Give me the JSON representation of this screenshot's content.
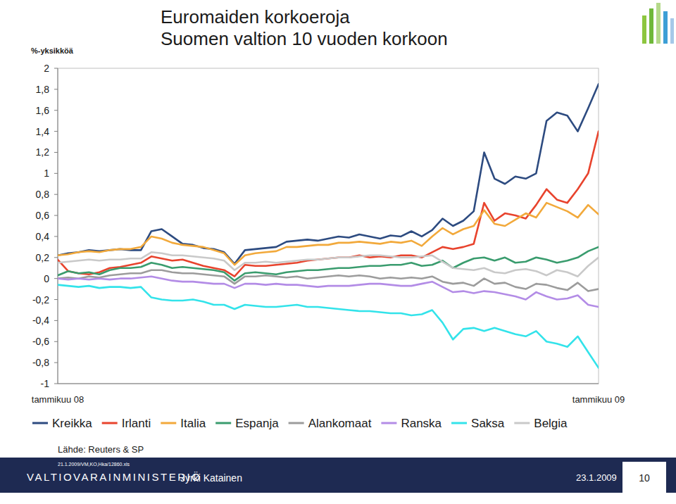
{
  "chart_data": {
    "type": "line",
    "title": "Euromaiden korkoeroja",
    "subtitle": "Suomen valtion 10 vuoden korkoon",
    "ylabel": "%-yksikköä",
    "categories": [
      "tammikuu 08",
      null,
      null,
      null,
      null,
      null,
      null,
      null,
      null,
      null,
      null,
      null,
      null,
      null,
      null,
      null,
      null,
      null,
      null,
      null,
      null,
      null,
      null,
      null,
      null,
      null,
      null,
      null,
      null,
      null,
      null,
      null,
      null,
      null,
      null,
      null,
      null,
      null,
      null,
      null,
      null,
      null,
      null,
      null,
      null,
      null,
      null,
      null,
      null,
      null,
      null,
      null,
      "tammikuu 09"
    ],
    "series": [
      {
        "name": "Kreikka",
        "color": "#2d4b80",
        "values": [
          0.22,
          0.24,
          0.25,
          0.27,
          0.26,
          0.27,
          0.28,
          0.27,
          0.27,
          0.45,
          0.47,
          0.4,
          0.33,
          0.32,
          0.29,
          0.28,
          0.25,
          0.14,
          0.27,
          0.28,
          0.29,
          0.3,
          0.35,
          0.36,
          0.37,
          0.36,
          0.38,
          0.4,
          0.39,
          0.42,
          0.4,
          0.38,
          0.41,
          0.4,
          0.45,
          0.4,
          0.46,
          0.57,
          0.5,
          0.55,
          0.64,
          1.2,
          0.95,
          0.9,
          0.97,
          0.95,
          1.0,
          1.5,
          1.58,
          1.55,
          1.4,
          1.62,
          1.85
        ]
      },
      {
        "name": "Irlanti",
        "color": "#e8432d",
        "values": [
          0.18,
          0.07,
          0.05,
          0.04,
          0.06,
          0.1,
          0.11,
          0.13,
          0.15,
          0.21,
          0.19,
          0.17,
          0.18,
          0.15,
          0.12,
          0.1,
          0.08,
          0.02,
          0.13,
          0.12,
          0.12,
          0.13,
          0.14,
          0.15,
          0.17,
          0.18,
          0.19,
          0.2,
          0.2,
          0.22,
          0.2,
          0.21,
          0.2,
          0.22,
          0.22,
          0.2,
          0.25,
          0.3,
          0.28,
          0.3,
          0.33,
          0.72,
          0.55,
          0.62,
          0.6,
          0.57,
          0.7,
          0.85,
          0.75,
          0.72,
          0.85,
          1.0,
          1.4
        ]
      },
      {
        "name": "Italia",
        "color": "#f2a93b",
        "values": [
          0.22,
          0.23,
          0.25,
          0.26,
          0.25,
          0.27,
          0.28,
          0.28,
          0.3,
          0.4,
          0.38,
          0.34,
          0.32,
          0.31,
          0.3,
          0.27,
          0.24,
          0.13,
          0.22,
          0.24,
          0.25,
          0.26,
          0.3,
          0.3,
          0.31,
          0.32,
          0.32,
          0.34,
          0.34,
          0.35,
          0.34,
          0.33,
          0.35,
          0.34,
          0.36,
          0.31,
          0.4,
          0.48,
          0.42,
          0.47,
          0.5,
          0.65,
          0.52,
          0.5,
          0.56,
          0.62,
          0.58,
          0.72,
          0.68,
          0.64,
          0.58,
          0.7,
          0.61
        ]
      },
      {
        "name": "Espanja",
        "color": "#3a9c6e",
        "values": [
          0.03,
          0.07,
          0.05,
          0.06,
          0.04,
          0.08,
          0.1,
          0.1,
          0.11,
          0.15,
          0.13,
          0.1,
          0.11,
          0.1,
          0.09,
          0.08,
          0.06,
          -0.02,
          0.05,
          0.06,
          0.05,
          0.04,
          0.06,
          0.07,
          0.08,
          0.08,
          0.09,
          0.1,
          0.1,
          0.11,
          0.12,
          0.12,
          0.13,
          0.13,
          0.15,
          0.12,
          0.13,
          0.17,
          0.1,
          0.15,
          0.19,
          0.2,
          0.17,
          0.2,
          0.15,
          0.16,
          0.2,
          0.18,
          0.15,
          0.17,
          0.2,
          0.26,
          0.3
        ]
      },
      {
        "name": "Alankomaat",
        "color": "#9c9c9c",
        "values": [
          0.0,
          0.01,
          0.0,
          0.02,
          0.01,
          0.03,
          0.04,
          0.05,
          0.05,
          0.08,
          0.08,
          0.06,
          0.05,
          0.05,
          0.04,
          0.03,
          0.02,
          -0.05,
          0.02,
          0.02,
          0.03,
          0.02,
          0.01,
          0.02,
          0.0,
          0.01,
          0.02,
          0.03,
          0.02,
          0.03,
          0.02,
          0.0,
          0.01,
          0.0,
          0.01,
          0.0,
          0.02,
          -0.03,
          -0.05,
          -0.04,
          -0.07,
          0.0,
          -0.05,
          -0.04,
          -0.08,
          -0.1,
          -0.05,
          -0.06,
          -0.09,
          -0.11,
          -0.04,
          -0.12,
          -0.1
        ]
      },
      {
        "name": "Ranska",
        "color": "#b38ce6",
        "values": [
          0.0,
          -0.01,
          0.0,
          -0.01,
          0.0,
          -0.01,
          0.0,
          0.0,
          0.01,
          0.02,
          0.0,
          -0.02,
          -0.03,
          -0.03,
          -0.04,
          -0.05,
          -0.05,
          -0.09,
          -0.05,
          -0.05,
          -0.06,
          -0.05,
          -0.06,
          -0.06,
          -0.07,
          -0.08,
          -0.07,
          -0.07,
          -0.07,
          -0.06,
          -0.05,
          -0.05,
          -0.06,
          -0.07,
          -0.07,
          -0.05,
          -0.03,
          -0.08,
          -0.13,
          -0.12,
          -0.14,
          -0.12,
          -0.13,
          -0.15,
          -0.17,
          -0.2,
          -0.13,
          -0.17,
          -0.2,
          -0.19,
          -0.16,
          -0.25,
          -0.27
        ]
      },
      {
        "name": "Saksa",
        "color": "#33e3ea",
        "values": [
          -0.06,
          -0.07,
          -0.08,
          -0.07,
          -0.09,
          -0.08,
          -0.08,
          -0.09,
          -0.08,
          -0.18,
          -0.2,
          -0.21,
          -0.21,
          -0.2,
          -0.22,
          -0.25,
          -0.25,
          -0.29,
          -0.25,
          -0.26,
          -0.27,
          -0.27,
          -0.26,
          -0.25,
          -0.27,
          -0.27,
          -0.28,
          -0.29,
          -0.3,
          -0.31,
          -0.31,
          -0.32,
          -0.33,
          -0.33,
          -0.35,
          -0.34,
          -0.3,
          -0.42,
          -0.58,
          -0.48,
          -0.47,
          -0.5,
          -0.47,
          -0.5,
          -0.53,
          -0.55,
          -0.5,
          -0.6,
          -0.62,
          -0.65,
          -0.55,
          -0.7,
          -0.85
        ]
      },
      {
        "name": "Belgia",
        "color": "#c9c9c9",
        "values": [
          0.15,
          0.16,
          0.17,
          0.18,
          0.17,
          0.18,
          0.18,
          0.19,
          0.19,
          0.25,
          0.24,
          0.22,
          0.22,
          0.21,
          0.2,
          0.19,
          0.17,
          0.08,
          0.15,
          0.15,
          0.16,
          0.15,
          0.16,
          0.17,
          0.18,
          0.18,
          0.19,
          0.2,
          0.2,
          0.21,
          0.22,
          0.22,
          0.21,
          0.2,
          0.2,
          0.21,
          0.22,
          0.16,
          0.1,
          0.09,
          0.08,
          0.1,
          0.06,
          0.05,
          0.08,
          0.09,
          0.07,
          0.03,
          0.08,
          0.06,
          0.02,
          0.12,
          0.2
        ]
      }
    ],
    "ylim": [
      -1,
      2
    ],
    "yticks": [
      2,
      {
        "value": 1.8,
        "label": "1,8"
      },
      {
        "value": 1.6,
        "label": "1,6"
      },
      {
        "value": 1.4,
        "label": "1,4"
      },
      {
        "value": 1.2,
        "label": "1,2"
      },
      1,
      {
        "value": 0.8,
        "label": "0,8"
      },
      {
        "value": 0.6,
        "label": "0,6"
      },
      {
        "value": 0.4,
        "label": "0,4"
      },
      {
        "value": 0.2,
        "label": "0,2"
      },
      0,
      {
        "value": -0.2,
        "label": "-0,2"
      },
      {
        "value": -0.4,
        "label": "-0,4"
      },
      {
        "value": -0.6,
        "label": "-0,6"
      },
      {
        "value": -0.8,
        "label": "-0,8"
      },
      -1
    ],
    "grid": false,
    "legend": "bottom"
  },
  "page": {
    "source": "Lähde: Reuters & SP",
    "file_ref": "21.1.2009/VM,KO,Hka/12860.xls",
    "organization": "VALTIOVARAINMINISTERIÖ",
    "presenter": "Jyrki Katainen",
    "date": "23.1.2009",
    "page_number": 10
  }
}
